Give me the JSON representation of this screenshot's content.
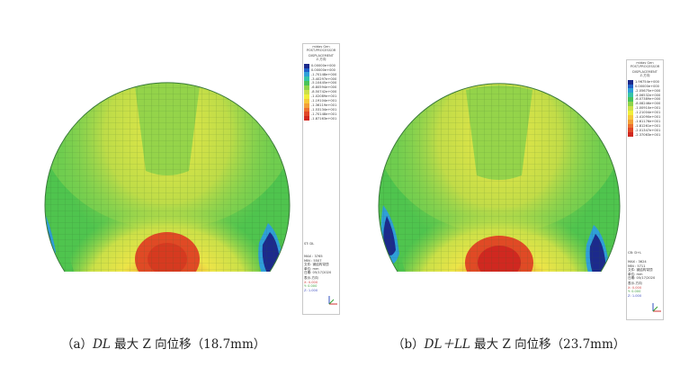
{
  "panels": [
    {
      "id": "a",
      "legend": {
        "app": "midas Gen",
        "module": "POST-PROCESSOR",
        "result": "DISPLACEMENT",
        "component": "Z-方向",
        "values": [
          "0.00000e+000",
          "0.00000e+000",
          "-1.70148e+000",
          "-3.40297e+000",
          "-5.10445e+000",
          "-6.80594e+000",
          "-8.50742e+000",
          "-1.02089e+001",
          "-1.19104e+001",
          "-1.36119e+001",
          "-1.53134e+001",
          "-1.70148e+001",
          "-1.87163e+001"
        ],
        "load_case": "ST: DL",
        "max_line": "MAX : 3765",
        "min_line": "MIN : 5507",
        "file_line": "文件: 钢结构穹顶",
        "unit_line": "单位: mm",
        "date_line": "日期: 05/17/2020",
        "view_label": "表示-方向",
        "view_x": "X: 0.000",
        "view_y": "Y: 0.000",
        "view_z": "Z: 1.000"
      },
      "caption": {
        "prefix": "（a）",
        "italic": "DL",
        "rest": " 最大 Z 向位移（18.7mm）"
      }
    },
    {
      "id": "b",
      "legend": {
        "app": "midas Gen",
        "module": "POST-PROCESSOR",
        "result": "DISPLACEMENT",
        "component": "Z-方向",
        "values": [
          "1.96754e+000",
          "0.00000e+000",
          "-2.05675e+000",
          "-4.06532e+000",
          "-6.07389e+000",
          "-8.08246e+000",
          "-1.00910e+001",
          "-1.21004e+001",
          "-1.41090e+001",
          "-1.61176e+001",
          "-1.81261e+001",
          "-2.01347e+001",
          "-2.37063e+001"
        ],
        "load_case": "CB: D+L",
        "max_line": "MAX : 3624",
        "min_line": "MIN : 5711",
        "file_line": "文件: 钢结构穹顶",
        "unit_line": "单位: mm",
        "date_line": "日期: 05/17/2020",
        "view_label": "表示-方向",
        "view_x": "X: 0.000",
        "view_y": "Y: 0.000",
        "view_z": "Z: 1.000"
      },
      "caption": {
        "prefix": "（b）",
        "italic": "DL＋LL",
        "rest": " 最大 Z 向位移（23.7mm）"
      }
    }
  ],
  "colors": {
    "legend_scale": [
      "#1c2a8c",
      "#2060c8",
      "#2f9fd8",
      "#35c4a8",
      "#49c35a",
      "#8ed44a",
      "#cbe048",
      "#f0ee3a",
      "#f6c83a",
      "#f2a038",
      "#ec7030",
      "#e04828",
      "#d02820"
    ],
    "background": "#ffffff"
  }
}
